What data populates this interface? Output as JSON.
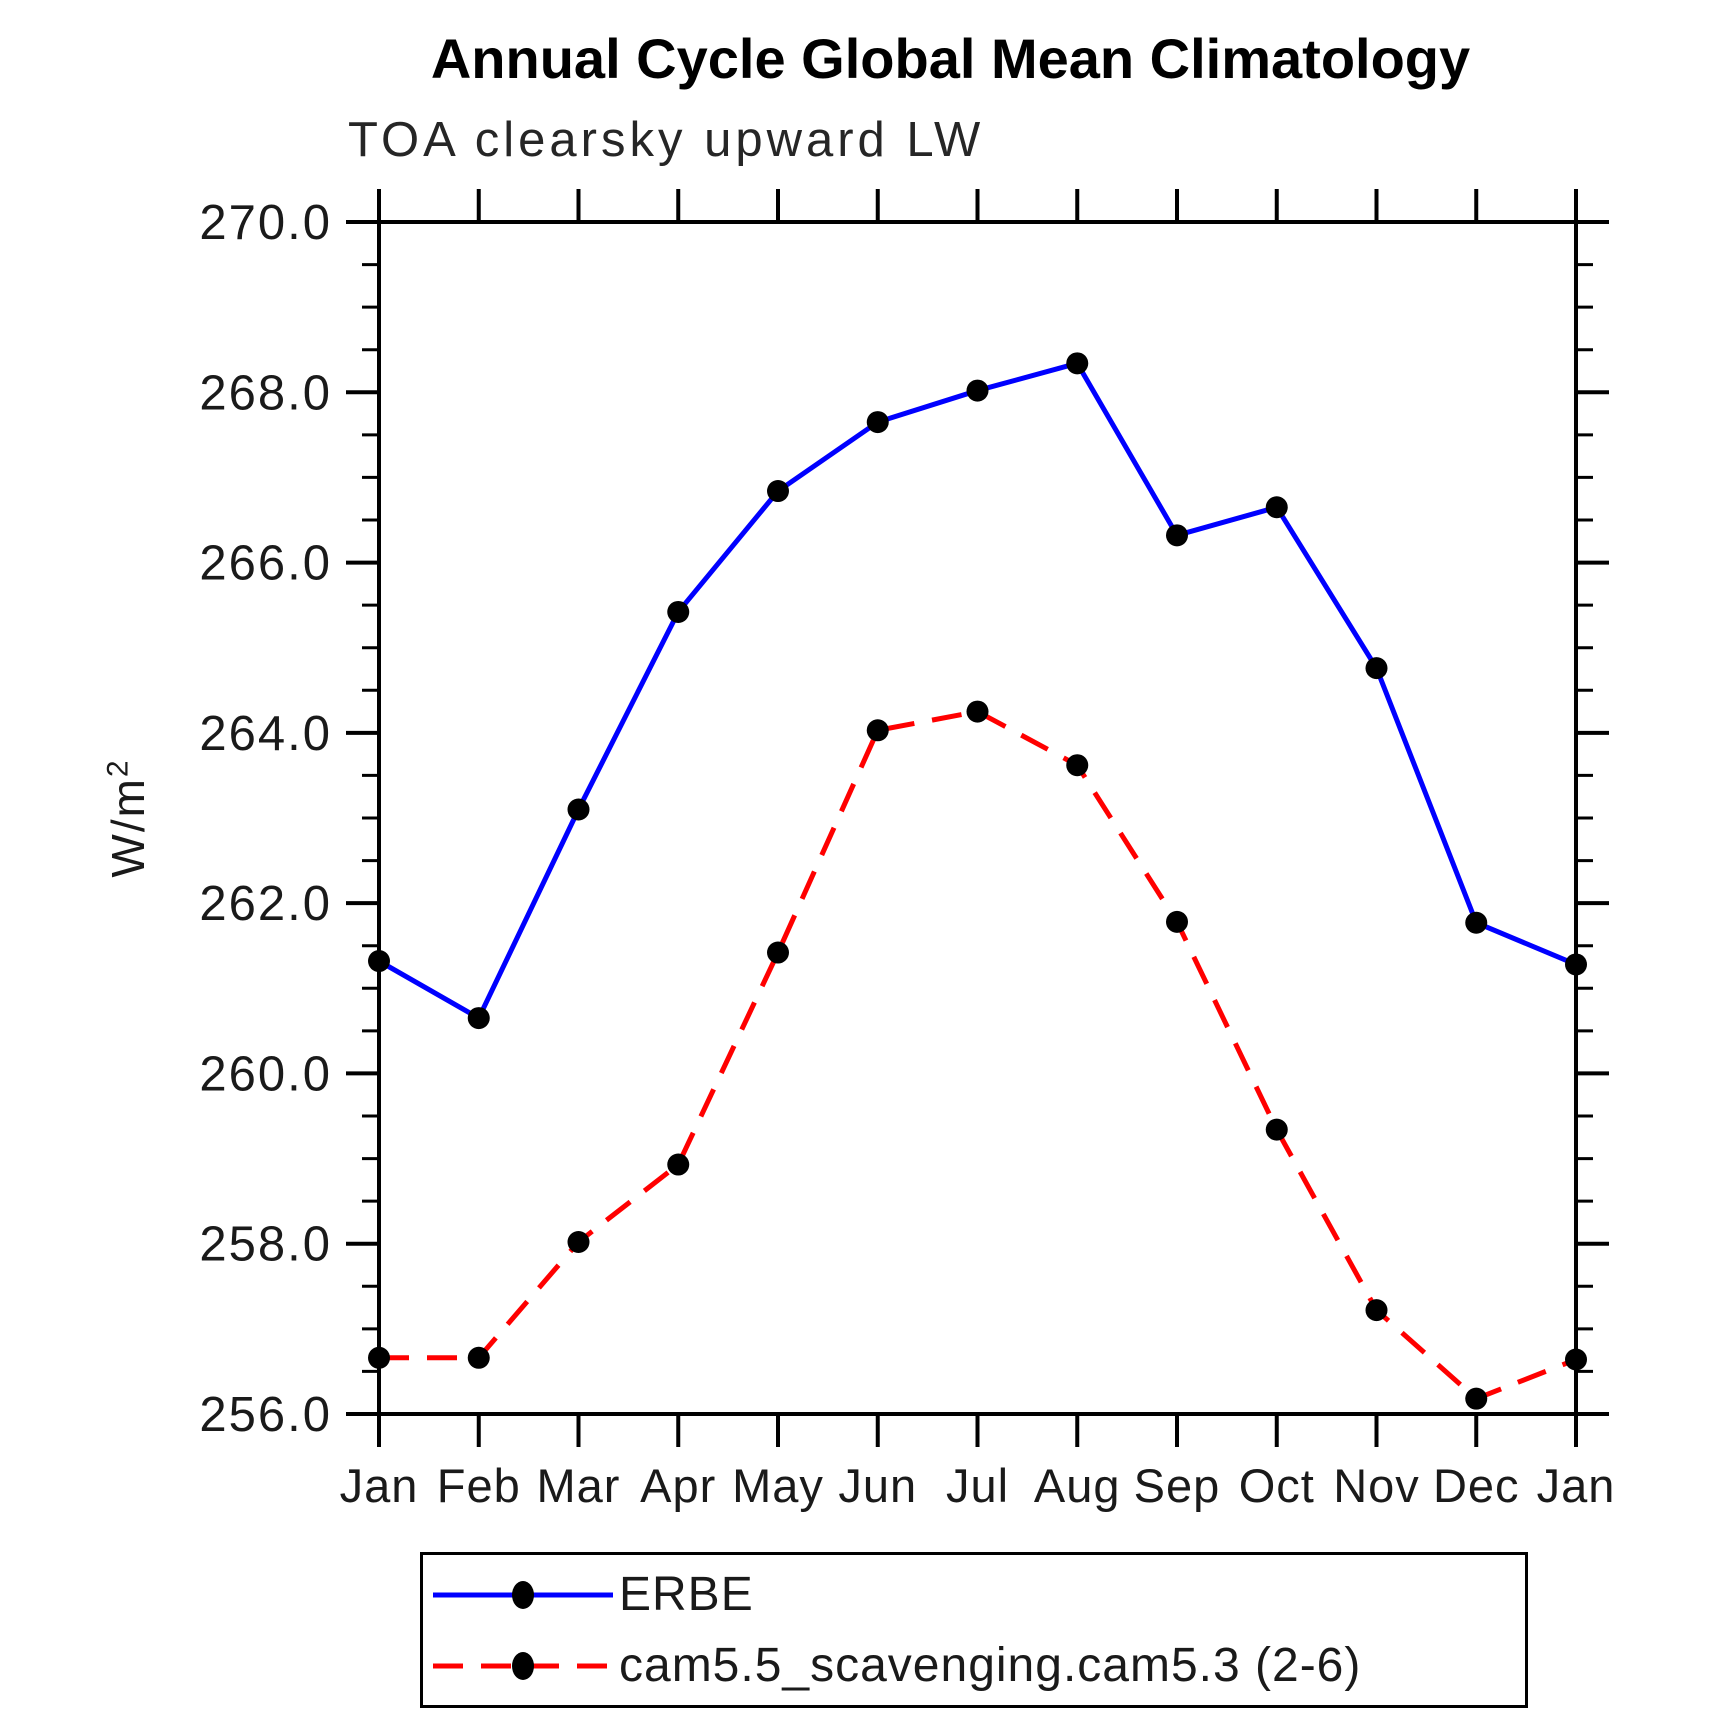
{
  "title": "Annual Cycle Global Mean Climatology",
  "subtitle": "TOA clearsky upward LW",
  "ylabel": {
    "base": "W/m",
    "exponent": "2"
  },
  "legend": [
    {
      "label": "ERBE",
      "color": "#0000ff",
      "style": "solid"
    },
    {
      "label": "cam5.5_scavenging.cam5.3 (2-6)",
      "color": "#ff0000",
      "style": "dashed"
    }
  ],
  "colors": {
    "axis": "#000000",
    "marker": "#000000",
    "erbe_line": "#0000ff",
    "cam_line": "#ff0000",
    "background": "#ffffff"
  },
  "chart_data": {
    "type": "line",
    "categories": [
      "Jan",
      "Feb",
      "Mar",
      "Apr",
      "May",
      "Jun",
      "Jul",
      "Aug",
      "Sep",
      "Oct",
      "Nov",
      "Dec",
      "Jan"
    ],
    "series": [
      {
        "name": "ERBE",
        "color": "#0000ff",
        "style": "solid",
        "marker": "circle",
        "values": [
          261.32,
          260.65,
          263.1,
          265.42,
          266.84,
          267.65,
          268.02,
          268.34,
          266.32,
          266.65,
          264.76,
          261.77,
          261.28
        ]
      },
      {
        "name": "cam5.5_scavenging.cam5.3 (2-6)",
        "color": "#ff0000",
        "style": "dashed",
        "marker": "circle",
        "values": [
          256.66,
          256.66,
          258.02,
          258.93,
          261.42,
          264.03,
          264.25,
          263.62,
          261.78,
          259.34,
          257.22,
          256.18,
          256.64
        ]
      }
    ],
    "ylabel": "W/m^2",
    "ylim": [
      256.0,
      270.0
    ],
    "ytick_step": 2.0,
    "yminor_step": 0.5,
    "ytick_labels": [
      "270.0",
      "268.0",
      "266.0",
      "264.0",
      "262.0",
      "260.0",
      "258.0",
      "256.0"
    ],
    "grid": false,
    "legend_position": "bottom"
  }
}
